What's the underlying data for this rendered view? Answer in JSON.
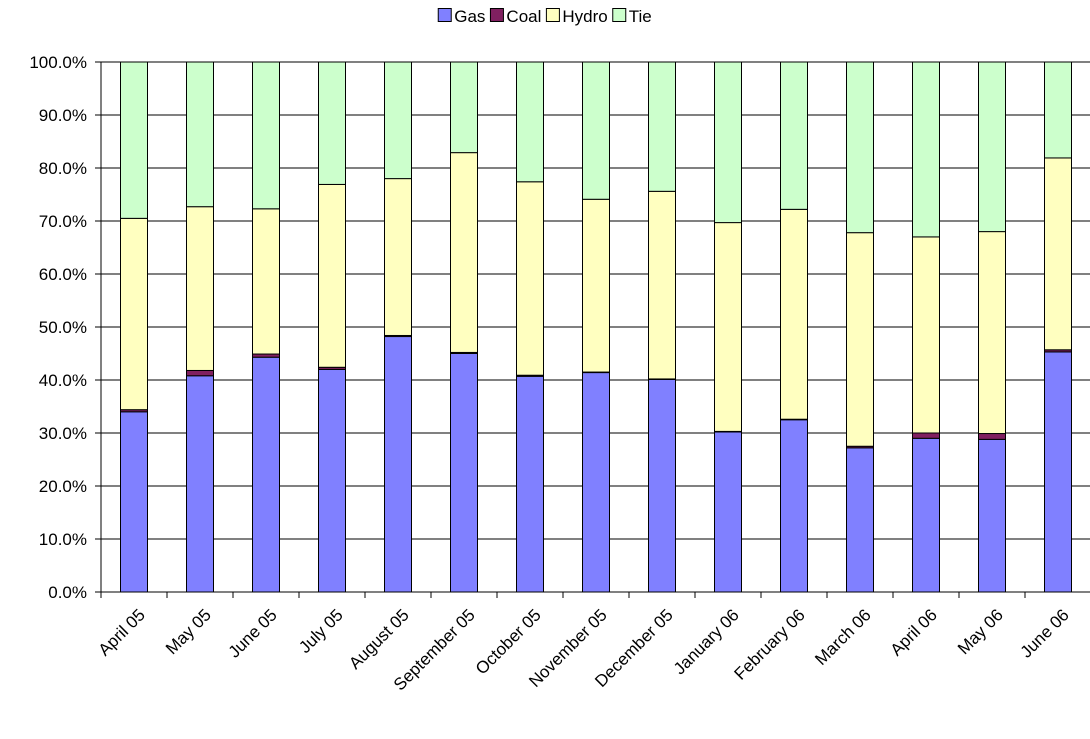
{
  "chart_data": {
    "type": "bar",
    "stacked": true,
    "title": "",
    "xlabel": "",
    "ylabel": "",
    "ylim": [
      0,
      100
    ],
    "yticks": [
      "0.0%",
      "10.0%",
      "20.0%",
      "30.0%",
      "40.0%",
      "50.0%",
      "60.0%",
      "70.0%",
      "80.0%",
      "90.0%",
      "100.0%"
    ],
    "grid": true,
    "legend_position": "top",
    "categories": [
      "April 05",
      "May  05",
      "June 05",
      "July 05",
      "August 05",
      "September 05",
      "October 05",
      "November 05",
      "December 05",
      "January 06",
      "February 06",
      "March 06",
      "April 06",
      "May 06",
      "June 06"
    ],
    "series": [
      {
        "name": "Gas",
        "color": "#8080ff",
        "values": [
          34.0,
          40.8,
          44.3,
          42.0,
          48.2,
          45.0,
          40.7,
          41.4,
          40.1,
          30.2,
          32.5,
          27.2,
          29.0,
          28.8,
          45.3
        ]
      },
      {
        "name": "Coal",
        "color": "#802060",
        "values": [
          0.4,
          1.0,
          0.6,
          0.4,
          0.2,
          0.2,
          0.2,
          0.1,
          0.1,
          0.1,
          0.1,
          0.3,
          1.0,
          1.1,
          0.4
        ]
      },
      {
        "name": "Hydro",
        "color": "#ffffc0",
        "values": [
          36.1,
          30.9,
          27.4,
          34.5,
          29.6,
          37.7,
          36.5,
          32.6,
          35.4,
          39.4,
          39.6,
          40.3,
          37.0,
          38.1,
          36.2
        ]
      },
      {
        "name": "Tie",
        "color": "#ccffcc",
        "values": [
          29.5,
          27.3,
          27.7,
          23.1,
          22.0,
          17.1,
          22.6,
          25.9,
          24.4,
          30.3,
          27.8,
          32.2,
          33.0,
          32.0,
          18.1
        ]
      }
    ]
  }
}
